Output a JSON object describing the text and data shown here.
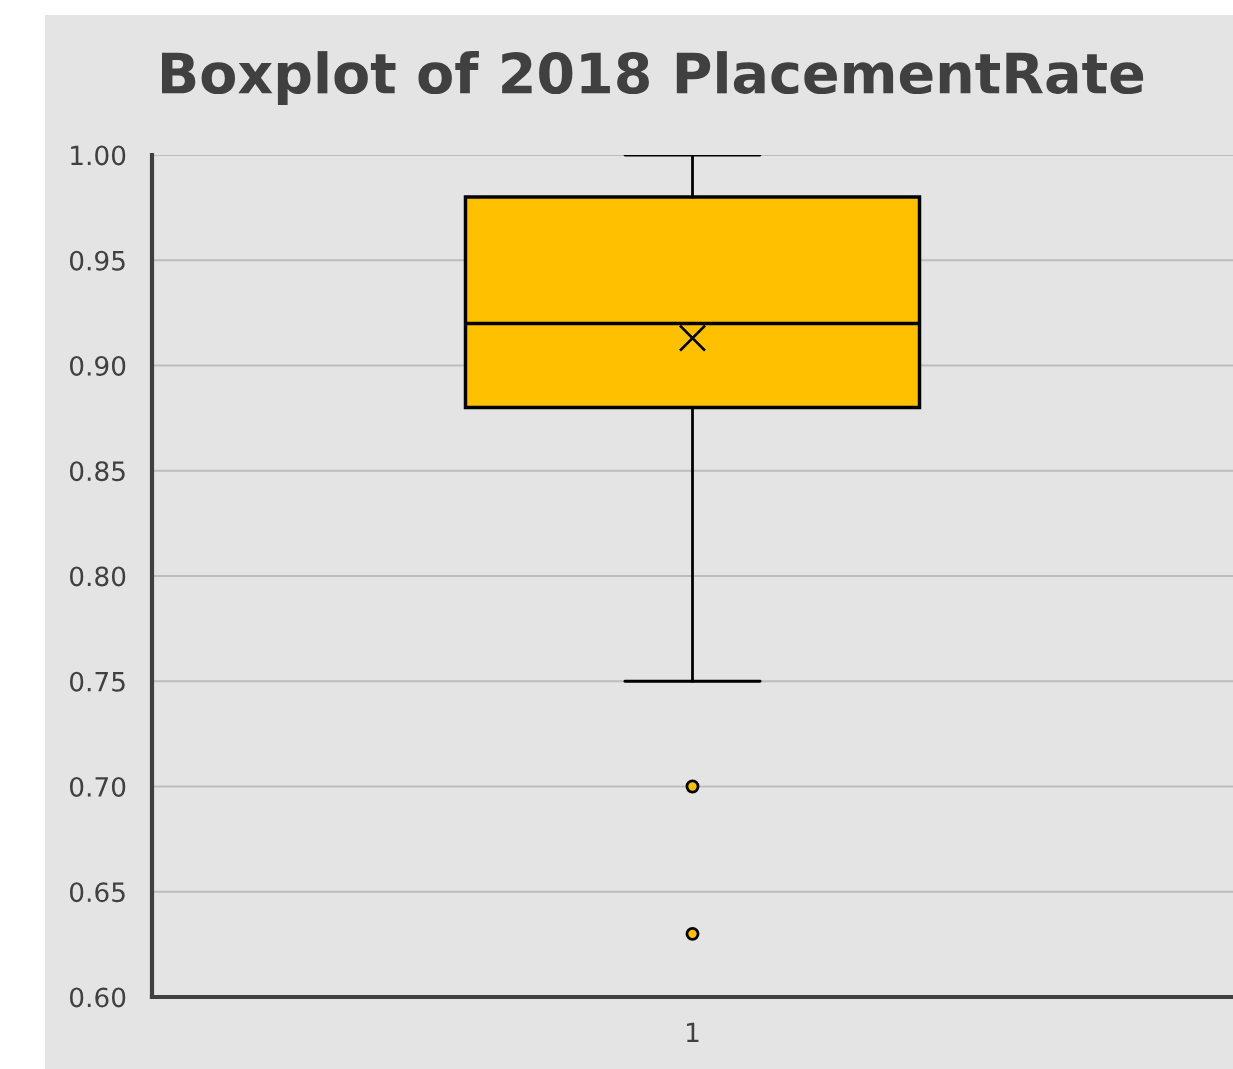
{
  "chart_data": {
    "type": "box",
    "title": "Boxplot of 2018 PlacementRate",
    "categories": [
      "1"
    ],
    "color": "#ffc000",
    "boxes": [
      {
        "low": 0.75,
        "q1": 0.88,
        "median": 0.92,
        "q3": 0.98,
        "high": 1.0,
        "mean": 0.913,
        "outliers": [
          0.7,
          0.63
        ]
      }
    ],
    "ylim": [
      0.6,
      1.0
    ],
    "yticks": [
      {
        "value": 0.6,
        "label": "0.60"
      },
      {
        "value": 0.65,
        "label": "0.65"
      },
      {
        "value": 0.7,
        "label": "0.70"
      },
      {
        "value": 0.75,
        "label": "0.75"
      },
      {
        "value": 0.8,
        "label": "0.80"
      },
      {
        "value": 0.85,
        "label": "0.85"
      },
      {
        "value": 0.9,
        "label": "0.90"
      },
      {
        "value": 0.95,
        "label": "0.95"
      },
      {
        "value": 1.0,
        "label": "1.00"
      }
    ],
    "grid": "y",
    "legend": false
  }
}
